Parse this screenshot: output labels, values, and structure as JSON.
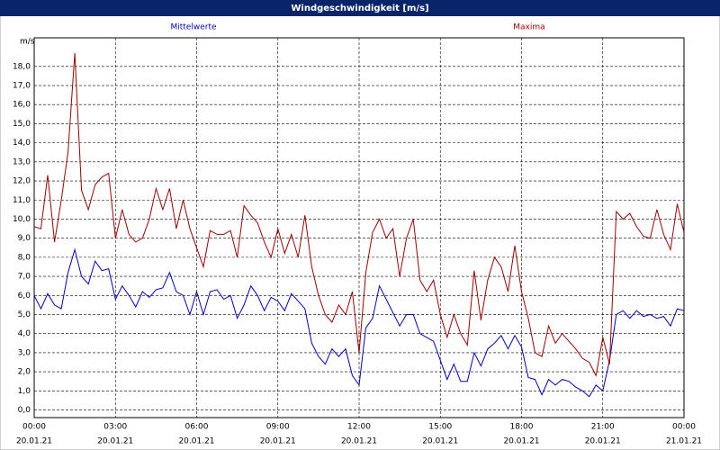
{
  "chart_data": {
    "type": "line",
    "title": "Windgeschwindigkeit [m/s]",
    "y_label": "m/s",
    "x": [
      0,
      15,
      30,
      45,
      60,
      75,
      90,
      105,
      120,
      135,
      150,
      165,
      180,
      195,
      210,
      225,
      240,
      255,
      270,
      285,
      300,
      315,
      330,
      345,
      360,
      375,
      390,
      405,
      420,
      435,
      450,
      465,
      480,
      495,
      510,
      525,
      540,
      555,
      570,
      585,
      600,
      615,
      630,
      645,
      660,
      675,
      690,
      705,
      720,
      735,
      750,
      765,
      780,
      795,
      810,
      825,
      840,
      855,
      870,
      885,
      900,
      915,
      930,
      945,
      960,
      975,
      990,
      1005,
      1020,
      1035,
      1050,
      1065,
      1080,
      1095,
      1110,
      1125,
      1140,
      1155,
      1170,
      1185,
      1200,
      1215,
      1230,
      1245,
      1260,
      1275,
      1290,
      1305,
      1320,
      1335,
      1350,
      1365,
      1380,
      1395,
      1410,
      1425,
      1440
    ],
    "series": [
      {
        "name": "Mittelwerte",
        "color": "#0000c8",
        "values": [
          6.0,
          5.3,
          6.1,
          5.5,
          5.3,
          7.2,
          8.4,
          7.0,
          6.6,
          7.8,
          7.3,
          7.4,
          5.8,
          6.5,
          6.0,
          5.4,
          6.2,
          5.9,
          6.3,
          6.4,
          7.2,
          6.2,
          6.0,
          5.0,
          6.2,
          5.0,
          6.2,
          6.3,
          5.8,
          6.0,
          4.8,
          5.5,
          6.5,
          6.0,
          5.2,
          5.9,
          5.7,
          5.2,
          6.1,
          5.7,
          5.3,
          3.5,
          2.8,
          2.4,
          3.2,
          2.8,
          3.2,
          1.8,
          1.3,
          4.3,
          4.8,
          6.5,
          5.8,
          5.1,
          4.4,
          5.0,
          5.0,
          4.0,
          3.8,
          3.6,
          2.6,
          1.6,
          2.4,
          1.5,
          1.5,
          3.0,
          2.3,
          3.2,
          3.5,
          3.9,
          3.2,
          3.9,
          3.3,
          1.7,
          1.6,
          0.8,
          1.6,
          1.3,
          1.6,
          1.5,
          1.2,
          1.0,
          0.7,
          1.3,
          1.0,
          2.6,
          5.0,
          5.2,
          4.8,
          5.2,
          4.9,
          5.0,
          4.8,
          4.9,
          4.4,
          5.3,
          5.2
        ]
      },
      {
        "name": "Maxima",
        "color": "#a00000",
        "values": [
          9.6,
          9.5,
          12.3,
          8.8,
          11.0,
          13.5,
          18.7,
          11.5,
          10.5,
          11.8,
          12.2,
          12.4,
          9.0,
          10.5,
          9.2,
          8.8,
          9.0,
          10.0,
          11.6,
          10.5,
          11.6,
          9.5,
          11.0,
          9.5,
          8.5,
          7.5,
          9.4,
          9.2,
          9.2,
          9.4,
          8.0,
          10.7,
          10.2,
          9.8,
          8.8,
          8.0,
          9.5,
          8.2,
          9.2,
          8.0,
          10.2,
          7.5,
          6.0,
          5.0,
          4.6,
          5.5,
          5.0,
          6.2,
          3.0,
          7.2,
          9.3,
          10.0,
          9.0,
          9.5,
          7.0,
          9.0,
          10.0,
          6.8,
          6.2,
          6.8,
          5.0,
          3.8,
          5.0,
          4.0,
          3.4,
          7.3,
          4.7,
          6.8,
          8.0,
          7.5,
          6.2,
          8.6,
          6.2,
          4.8,
          3.0,
          2.8,
          4.4,
          3.5,
          4.0,
          3.6,
          3.2,
          2.7,
          2.5,
          1.8,
          3.8,
          2.4,
          10.4,
          10.0,
          10.3,
          9.6,
          9.1,
          9.0,
          10.5,
          9.2,
          8.4,
          10.8,
          9.3
        ]
      }
    ],
    "xlim": [
      0,
      1440
    ],
    "xticks": [
      {
        "value": 0,
        "label": "00:00"
      },
      {
        "value": 180,
        "label": "03:00"
      },
      {
        "value": 360,
        "label": "06:00"
      },
      {
        "value": 540,
        "label": "09:00"
      },
      {
        "value": 720,
        "label": "12:00"
      },
      {
        "value": 900,
        "label": "15:00"
      },
      {
        "value": 1080,
        "label": "18:00"
      },
      {
        "value": 1260,
        "label": "21:00"
      },
      {
        "value": 1440,
        "label": "00:00"
      }
    ],
    "xtick_dates": [
      "20.01.21",
      "20.01.21",
      "20.01.21",
      "20.01.21",
      "20.01.21",
      "20.01.21",
      "20.01.21",
      "20.01.21",
      "21.01.21"
    ],
    "ylim": [
      -0.4,
      19.5
    ],
    "yticks": [
      {
        "value": 0,
        "label": "0,0"
      },
      {
        "value": 1,
        "label": "1,0"
      },
      {
        "value": 2,
        "label": "2,0"
      },
      {
        "value": 3,
        "label": "3,0"
      },
      {
        "value": 4,
        "label": "4,0"
      },
      {
        "value": 5,
        "label": "5,0"
      },
      {
        "value": 6,
        "label": "6,0"
      },
      {
        "value": 7,
        "label": "7,0"
      },
      {
        "value": 8,
        "label": "8,0"
      },
      {
        "value": 9,
        "label": "9,0"
      },
      {
        "value": 10,
        "label": "10,0"
      },
      {
        "value": 11,
        "label": "11,0"
      },
      {
        "value": 12,
        "label": "12,0"
      },
      {
        "value": 13,
        "label": "13,0"
      },
      {
        "value": 14,
        "label": "14,0"
      },
      {
        "value": 15,
        "label": "15,0"
      },
      {
        "value": 16,
        "label": "16,0"
      },
      {
        "value": 17,
        "label": "17,0"
      },
      {
        "value": 18,
        "label": "18,0"
      }
    ],
    "grid": true
  }
}
